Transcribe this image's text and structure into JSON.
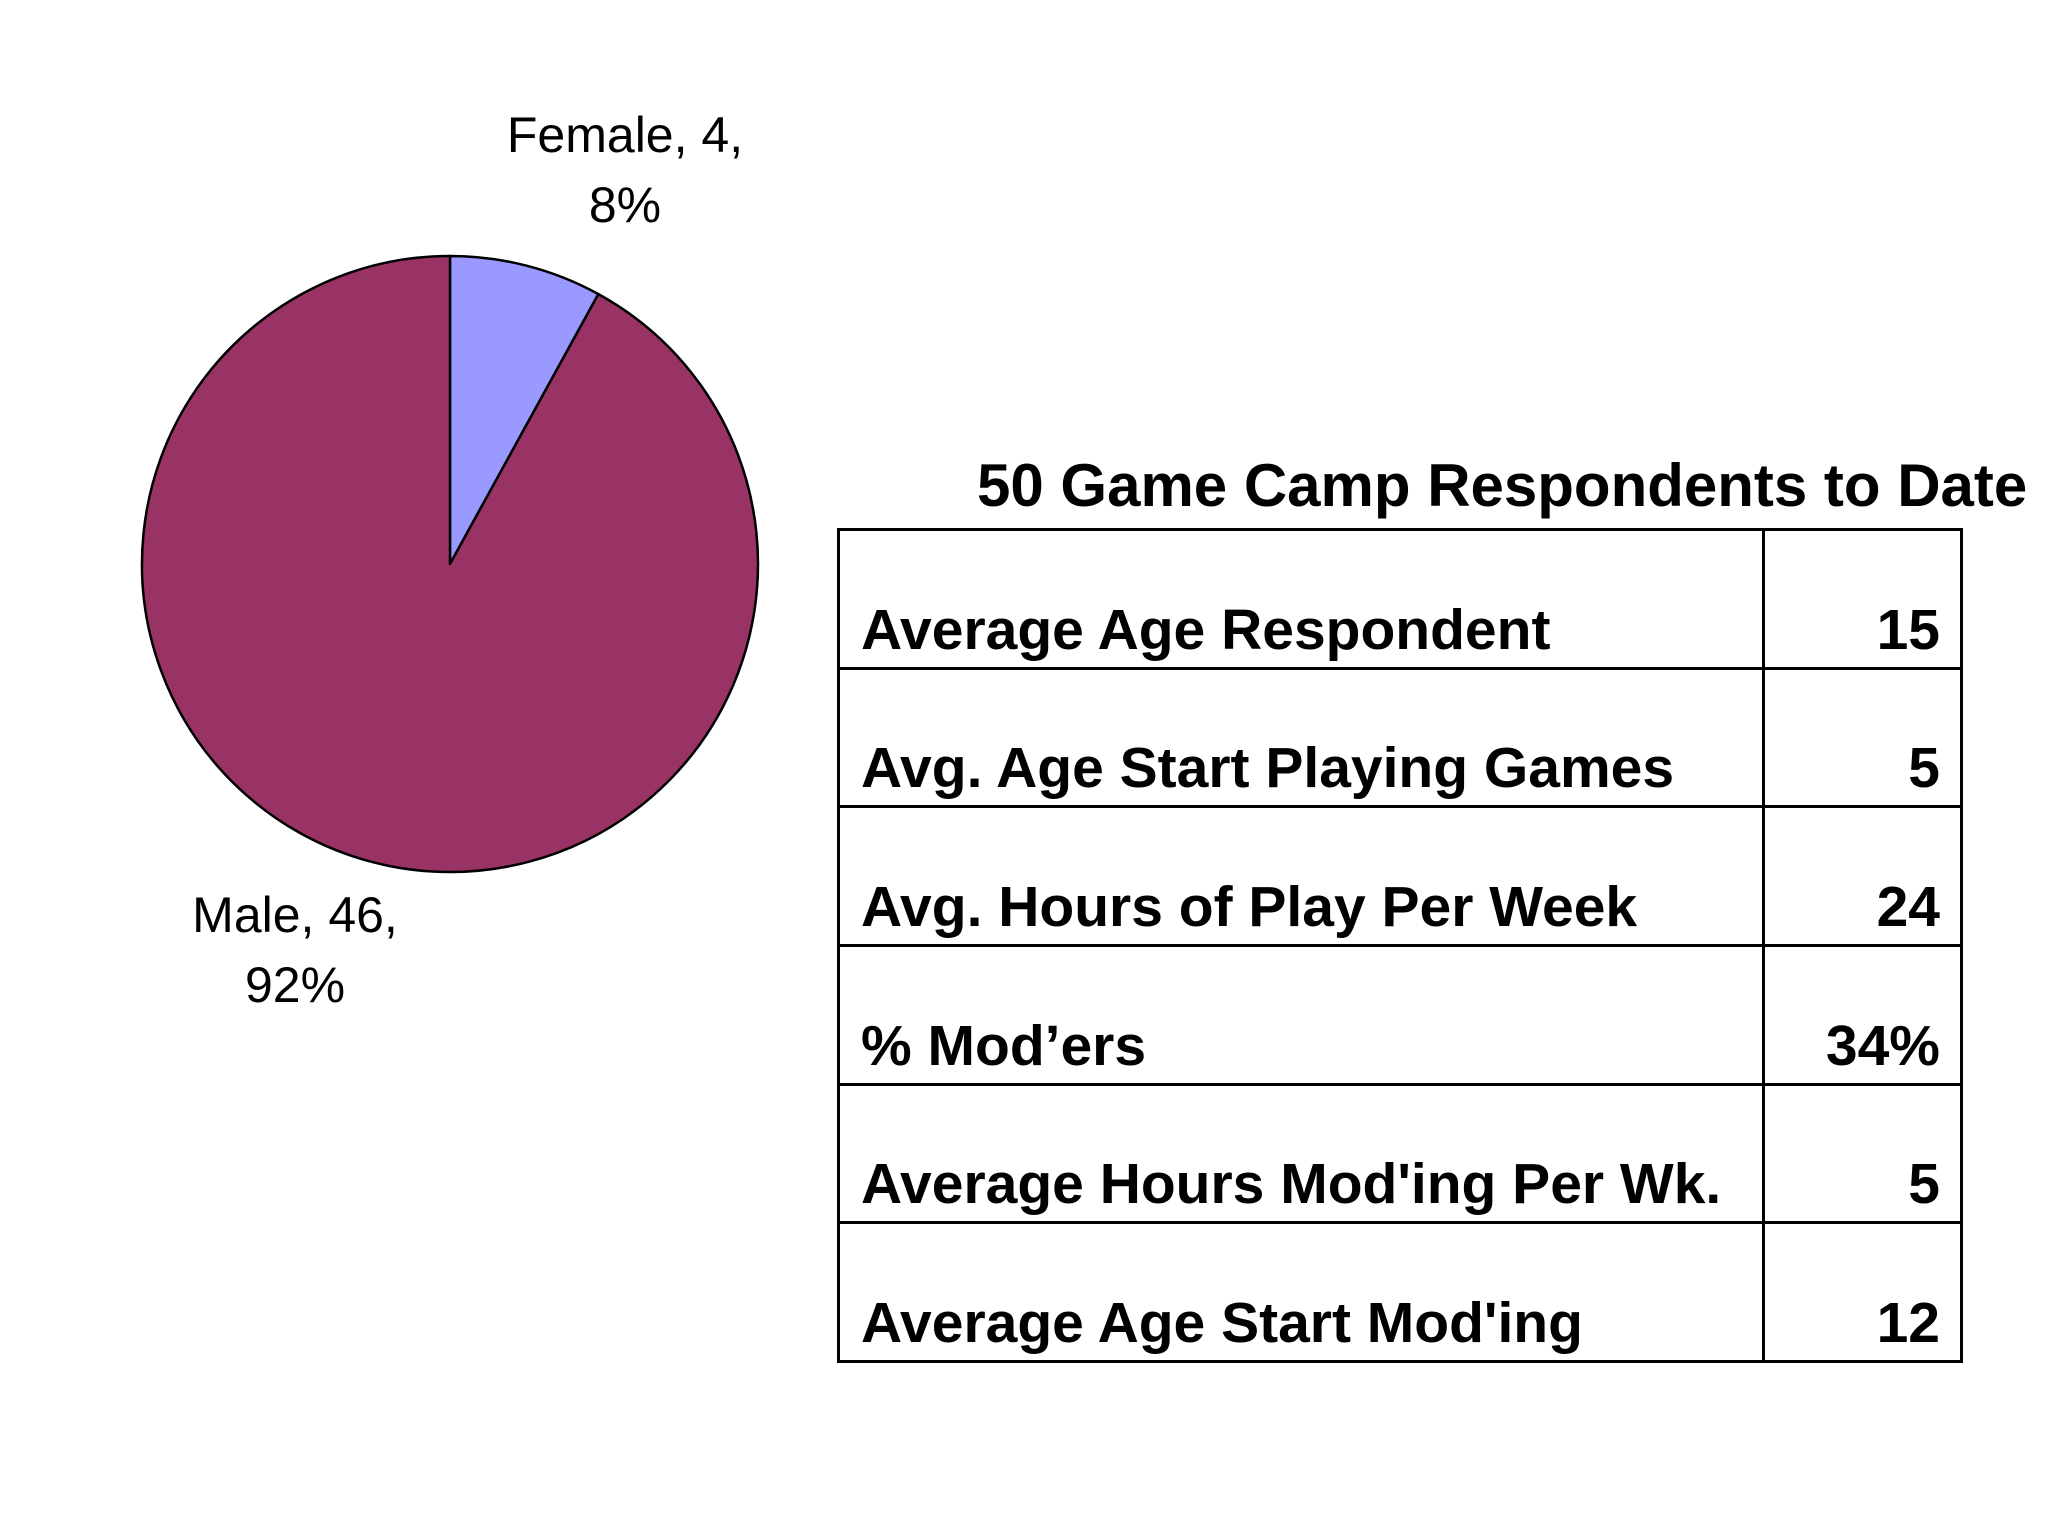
{
  "chart_data": {
    "type": "pie",
    "title": "",
    "categories": [
      "Female",
      "Male"
    ],
    "values": [
      4,
      46
    ],
    "total": 50,
    "percent_labels": [
      "8%",
      "92%"
    ],
    "colors": [
      "#9999FF",
      "#993366"
    ],
    "start_angle_deg": 0,
    "direction": "clockwise",
    "outline_color": "#000000",
    "slices": [
      {
        "name": "Female",
        "value": 4,
        "percent": "8%",
        "color": "#9999FF",
        "label_line1": "Female, 4,",
        "label_line2": "8%"
      },
      {
        "name": "Male",
        "value": 46,
        "percent": "92%",
        "color": "#993366",
        "label_line1": "Male, 46,",
        "label_line2": "92%"
      }
    ]
  },
  "table": {
    "title": "50 Game Camp Respondents to Date",
    "rows": [
      {
        "label": "Average Age Respondent",
        "value": "15"
      },
      {
        "label": "Avg. Age Start Playing Games",
        "value": "5"
      },
      {
        "label": "Avg. Hours of Play Per Week",
        "value": "24"
      },
      {
        "label": "% Mod’ers",
        "value": "34%"
      },
      {
        "label": "Average Hours Mod'ing Per Wk.",
        "value": "5"
      },
      {
        "label": "Average Age Start Mod'ing",
        "value": "12"
      }
    ]
  }
}
